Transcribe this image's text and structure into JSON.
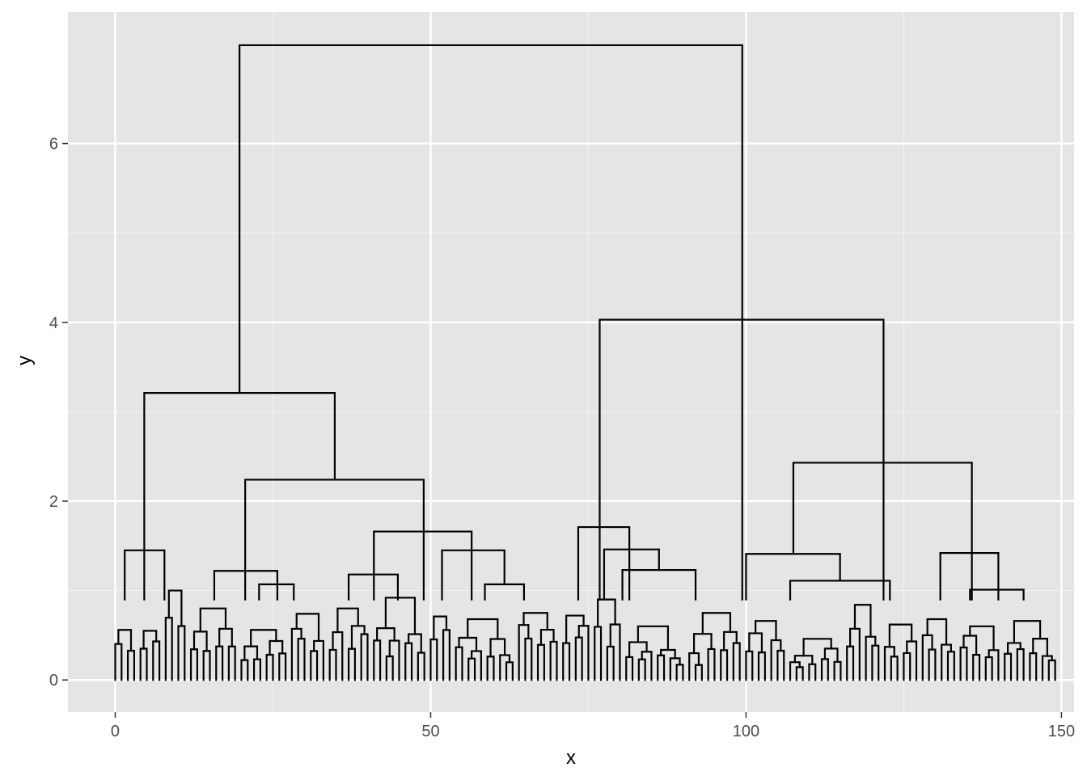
{
  "chart_data": {
    "type": "dendrogram",
    "xlabel": "x",
    "ylabel": "y",
    "xlim": [
      -7.5,
      152
    ],
    "ylim": [
      -0.36,
      7.47
    ],
    "x_ticks": [
      0,
      50,
      100,
      150
    ],
    "x_tick_labels": [
      "0",
      "50",
      "100",
      "150"
    ],
    "y_ticks": [
      0,
      2,
      4,
      6
    ],
    "y_tick_labels": [
      "0",
      "2",
      "4",
      "6"
    ],
    "grid": true,
    "leaf_count": 150,
    "merges": [
      {
        "x1": 19.7,
        "x2": 99.4,
        "h": 7.1
      },
      {
        "x1": 4.6,
        "x2": 34.8,
        "h": 3.21
      },
      {
        "x1": 76.8,
        "x2": 121.8,
        "h": 4.03
      },
      {
        "x1": 20.6,
        "x2": 48.9,
        "h": 2.24
      },
      {
        "x1": 107.5,
        "x2": 135.8,
        "h": 2.43
      },
      {
        "x1": 1.5,
        "x2": 7.8,
        "h": 1.45
      },
      {
        "x1": 41.0,
        "x2": 56.5,
        "h": 1.66
      },
      {
        "x1": 73.4,
        "x2": 81.5,
        "h": 1.71
      },
      {
        "x1": 100.0,
        "x2": 114.9,
        "h": 1.41
      },
      {
        "x1": 130.8,
        "x2": 140.0,
        "h": 1.42
      },
      {
        "x1": 77.5,
        "x2": 86.2,
        "h": 1.46
      },
      {
        "x1": 51.8,
        "x2": 61.7,
        "h": 1.45
      },
      {
        "x1": 15.7,
        "x2": 25.7,
        "h": 1.22
      },
      {
        "x1": 80.4,
        "x2": 92.0,
        "h": 1.23
      },
      {
        "x1": 37.0,
        "x2": 44.8,
        "h": 1.18
      },
      {
        "x1": 107.0,
        "x2": 122.8,
        "h": 1.11
      },
      {
        "x1": 58.6,
        "x2": 64.8,
        "h": 1.07
      },
      {
        "x1": 22.8,
        "x2": 28.3,
        "h": 1.07
      },
      {
        "x1": 135.5,
        "x2": 144.0,
        "h": 1.01
      }
    ]
  }
}
